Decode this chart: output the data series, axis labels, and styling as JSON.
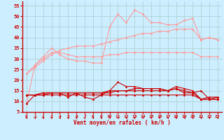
{
  "bg_color": "#cceeff",
  "grid_color": "#aacccc",
  "line_color_dark": "#cc0000",
  "line_color_light": "#ff9999",
  "xlabel": "Vent moyen/en rafales ( km/h )",
  "xlim_min": -0.5,
  "xlim_max": 23.5,
  "ylim_min": 5,
  "ylim_max": 57,
  "yticks": [
    5,
    10,
    15,
    20,
    25,
    30,
    35,
    40,
    45,
    50,
    55
  ],
  "xticks": [
    0,
    1,
    2,
    3,
    4,
    5,
    6,
    7,
    8,
    9,
    10,
    11,
    12,
    13,
    14,
    15,
    16,
    17,
    18,
    19,
    20,
    21,
    22,
    23
  ],
  "series_light": [
    [
      9,
      27,
      31,
      35,
      32,
      30,
      29,
      29,
      28,
      28,
      45,
      51,
      47,
      53,
      51,
      47,
      47,
      46,
      46,
      48,
      49,
      39,
      40,
      39
    ],
    [
      23,
      26,
      29,
      32,
      34,
      35,
      36,
      36,
      36,
      37,
      38,
      39,
      40,
      41,
      42,
      42,
      43,
      43,
      44,
      44,
      44,
      39,
      40,
      39
    ],
    [
      23,
      27,
      30,
      33,
      33,
      32,
      31,
      31,
      31,
      31,
      32,
      32,
      33,
      33,
      33,
      33,
      33,
      33,
      33,
      33,
      33,
      31,
      31,
      31
    ]
  ],
  "series_dark": [
    [
      9,
      13,
      14,
      14,
      14,
      12,
      14,
      12,
      11,
      13,
      15,
      19,
      17,
      17,
      16,
      16,
      16,
      15,
      17,
      16,
      15,
      11,
      12,
      12
    ],
    [
      13,
      13,
      13,
      14,
      14,
      14,
      14,
      14,
      14,
      14,
      15,
      15,
      15,
      15,
      15,
      15,
      15,
      15,
      16,
      15,
      14,
      11,
      11,
      11
    ],
    [
      13,
      13,
      13,
      13,
      13,
      13,
      13,
      13,
      13,
      13,
      13,
      13,
      13,
      13,
      13,
      13,
      13,
      13,
      13,
      13,
      13,
      11,
      11,
      11
    ],
    [
      13,
      13,
      14,
      14,
      14,
      14,
      14,
      14,
      14,
      14,
      14,
      15,
      15,
      16,
      16,
      16,
      16,
      15,
      16,
      14,
      14,
      15,
      11,
      12
    ]
  ],
  "marker_size": 2.0,
  "line_width": 0.8
}
